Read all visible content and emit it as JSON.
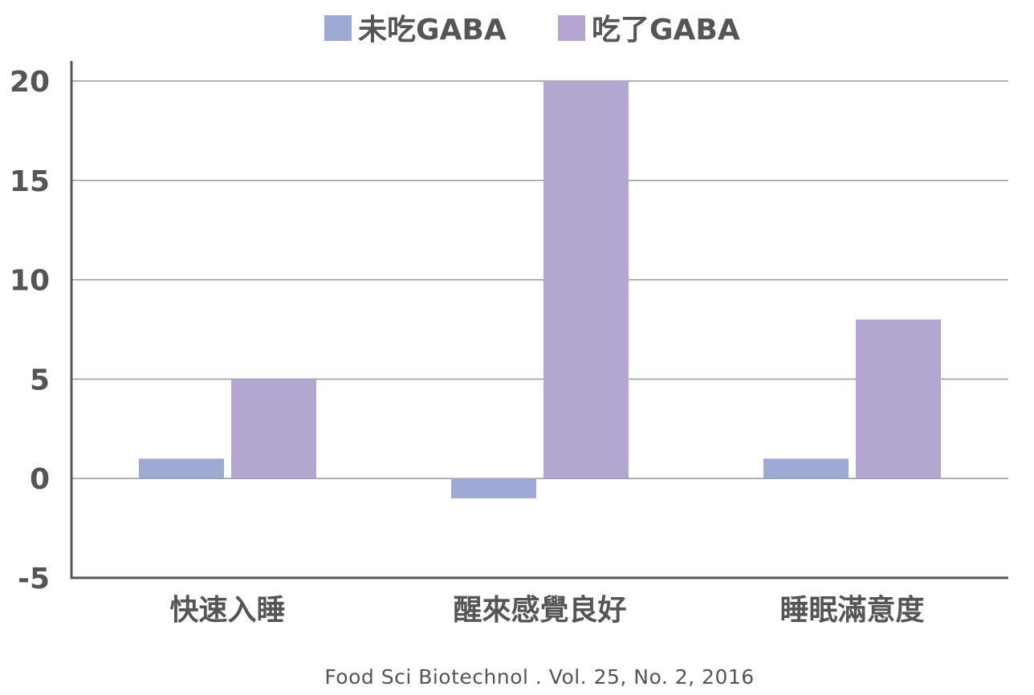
{
  "chart_data": {
    "type": "bar",
    "categories": [
      "快速入睡",
      "醒來感覺良好",
      "睡眠滿意度"
    ],
    "series": [
      {
        "name": "未吃GABA",
        "values": [
          1,
          -1,
          1
        ],
        "color": "#9ea9d4"
      },
      {
        "name": "吃了GABA",
        "values": [
          5,
          20,
          8
        ],
        "color": "#b3a7d1"
      }
    ],
    "ylim": [
      -5,
      20
    ],
    "yticks": [
      -5,
      0,
      5,
      10,
      15,
      20
    ],
    "grid": true,
    "legend": "top-center",
    "title": "",
    "xlabel": "",
    "ylabel": ""
  },
  "source_note": "Food Sci Biotechnol . Vol. 25, No. 2, 2016"
}
